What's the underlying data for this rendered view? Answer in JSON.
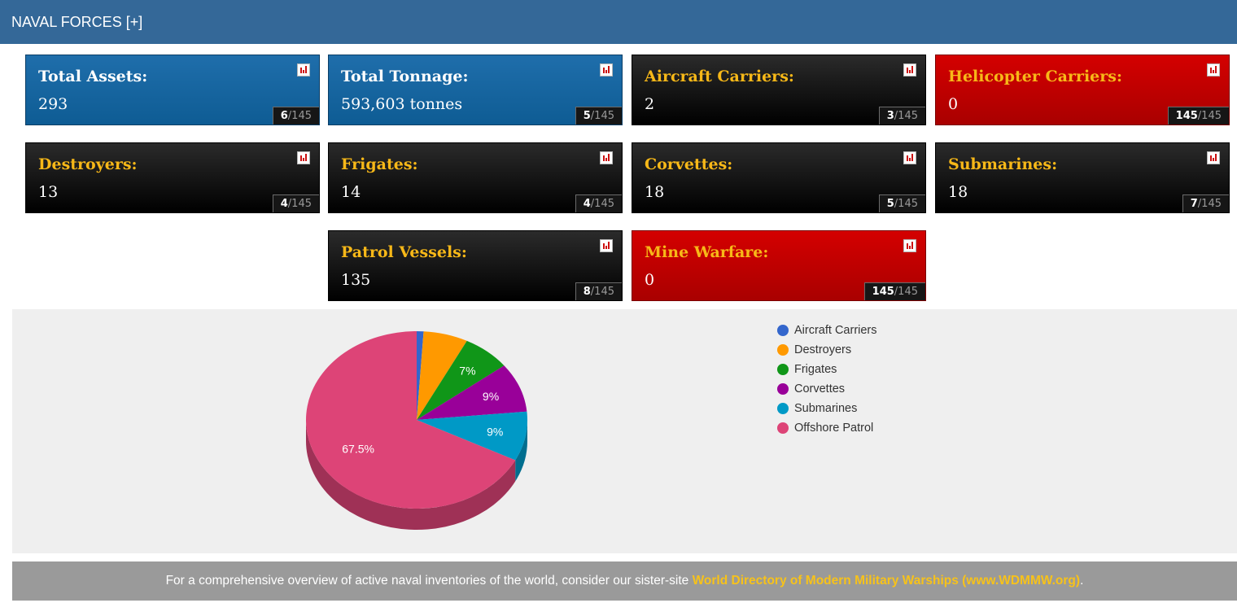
{
  "header": {
    "title": "NAVAL FORCES [+]"
  },
  "cards": [
    {
      "title": "Total Assets:",
      "value": "293",
      "rank": "6",
      "total": "/145",
      "style": "blue"
    },
    {
      "title": "Total Tonnage:",
      "value": "593,603 tonnes",
      "rank": "5",
      "total": "/145",
      "style": "blue"
    },
    {
      "title": "Aircraft Carriers:",
      "value": "2",
      "rank": "3",
      "total": "/145",
      "style": "black"
    },
    {
      "title": "Helicopter Carriers:",
      "value": "0",
      "rank": "145",
      "total": "/145",
      "style": "red"
    },
    {
      "title": "Destroyers:",
      "value": "13",
      "rank": "4",
      "total": "/145",
      "style": "black"
    },
    {
      "title": "Frigates:",
      "value": "14",
      "rank": "4",
      "total": "/145",
      "style": "black"
    },
    {
      "title": "Corvettes:",
      "value": "18",
      "rank": "5",
      "total": "/145",
      "style": "black"
    },
    {
      "title": "Submarines:",
      "value": "18",
      "rank": "7",
      "total": "/145",
      "style": "black"
    },
    {
      "title": "Patrol Vessels:",
      "value": "135",
      "rank": "8",
      "total": "/145",
      "style": "black"
    },
    {
      "title": "Mine Warfare:",
      "value": "0",
      "rank": "145",
      "total": "/145",
      "style": "red"
    }
  ],
  "chart_data": {
    "type": "pie",
    "categories": [
      "Aircraft Carriers",
      "Destroyers",
      "Frigates",
      "Corvettes",
      "Submarines",
      "Offshore Patrol"
    ],
    "values": [
      2,
      13,
      14,
      18,
      18,
      135
    ],
    "data_labels": [
      "",
      "",
      "7%",
      "9%",
      "9%",
      "67.5%"
    ],
    "colors": [
      "#3366cc",
      "#ff9900",
      "#109618",
      "#990099",
      "#0099c6",
      "#dd4477"
    ],
    "legend_position": "right"
  },
  "footer": {
    "text": "For a comprehensive overview of active naval inventories of the world, consider our sister-site ",
    "link_text": "World Directory of Modern Military Warships (www.WDMMW.org)",
    "suffix": "."
  }
}
